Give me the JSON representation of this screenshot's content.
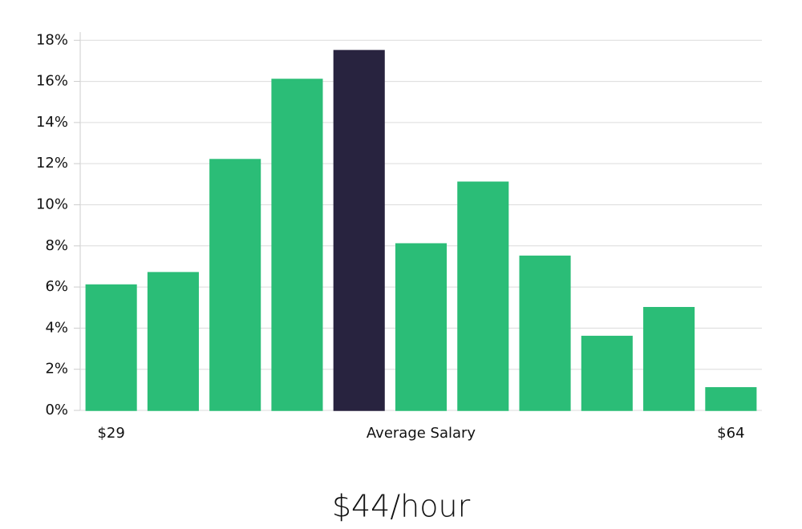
{
  "chart_data": {
    "type": "bar",
    "categories": [
      "$29",
      null,
      null,
      null,
      null,
      null,
      null,
      null,
      null,
      null,
      "$64"
    ],
    "values": [
      6.1,
      6.7,
      12.2,
      16.1,
      17.5,
      8.1,
      11.1,
      7.5,
      3.6,
      5.0,
      1.1
    ],
    "colors": [
      "#2bbd77",
      "#2bbd77",
      "#2bbd77",
      "#2bbd77",
      "#28233f",
      "#2bbd77",
      "#2bbd77",
      "#2bbd77",
      "#2bbd77",
      "#2bbd77",
      "#2bbd77"
    ],
    "xlabel": "Average Salary",
    "annotation": "$44/hour",
    "ylim": [
      0,
      18.4
    ],
    "yticks": [
      {
        "value": 0,
        "label": "0%"
      },
      {
        "value": 2,
        "label": "2%"
      },
      {
        "value": 4,
        "label": "4%"
      },
      {
        "value": 6,
        "label": "6%"
      },
      {
        "value": 8,
        "label": "8%"
      },
      {
        "value": 10,
        "label": "10%"
      },
      {
        "value": 12,
        "label": "12%"
      },
      {
        "value": 14,
        "label": "14%"
      },
      {
        "value": 16,
        "label": "16%"
      },
      {
        "value": 18,
        "label": "18%"
      }
    ],
    "grid": true
  }
}
